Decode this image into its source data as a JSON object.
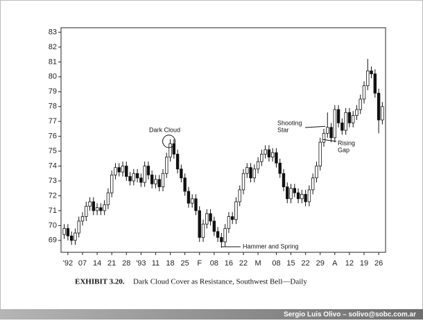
{
  "chart_data": {
    "type": "candlestick",
    "exhibit": "EXHIBIT 3.20.",
    "title": "Dark Cloud Cover as Resistance, Southwest Bell—Daily",
    "footer": "Sergio Luis Olivo – solivo@sobc.com.ar",
    "annotations": {
      "dark_cloud": [
        "Dark Cloud"
      ],
      "shooting_star": [
        "Shooting",
        "Star"
      ],
      "rising_gap": [
        "Rising",
        "Gap"
      ],
      "hammer": [
        "Hammer and Spring"
      ]
    },
    "ylim": [
      68.2,
      83.3
    ],
    "yticks": [
      69,
      70,
      71,
      72,
      73,
      74,
      75,
      76,
      77,
      78,
      79,
      80,
      81,
      82,
      83
    ],
    "xlim": [
      0,
      88
    ],
    "xticks": [
      {
        "value": 1,
        "label": "'92"
      },
      {
        "value": 5,
        "label": "07"
      },
      {
        "value": 9,
        "label": "14"
      },
      {
        "value": 13,
        "label": "21"
      },
      {
        "value": 17,
        "label": "28"
      },
      {
        "value": 21,
        "label": "'93"
      },
      {
        "value": 25,
        "label": "11"
      },
      {
        "value": 29,
        "label": "18"
      },
      {
        "value": 33,
        "label": "25"
      },
      {
        "value": 37,
        "label": "F"
      },
      {
        "value": 41,
        "label": "08"
      },
      {
        "value": 45,
        "label": "16"
      },
      {
        "value": 49,
        "label": "22"
      },
      {
        "value": 53,
        "label": "M"
      },
      {
        "value": 58,
        "label": "08"
      },
      {
        "value": 62,
        "label": "15"
      },
      {
        "value": 66,
        "label": "22"
      },
      {
        "value": 70,
        "label": "29"
      },
      {
        "value": 74,
        "label": "A"
      },
      {
        "value": 78,
        "label": "12"
      },
      {
        "value": 82,
        "label": "19"
      },
      {
        "value": 86,
        "label": "26"
      }
    ],
    "up_color": "#ffffff",
    "down_color": "#111111",
    "series": [
      {
        "open": [
          69.4,
          69.8,
          69.3,
          69.0,
          69.5,
          70.3,
          70.6,
          71.3,
          71.6,
          71.0,
          71.2,
          71.0,
          71.4,
          72.2,
          73.4,
          73.9,
          73.6,
          74.0,
          73.3,
          73.0,
          73.5,
          73.2,
          72.9,
          74.0,
          73.4,
          72.8,
          73.1,
          72.6,
          73.5,
          74.6,
          75.5,
          74.8,
          73.8,
          73.2,
          72.3,
          71.5,
          71.8,
          71.0,
          69.2,
          70.1,
          70.8,
          70.3,
          69.6,
          69.2,
          68.9,
          69.8,
          70.6,
          70.4,
          71.6,
          72.4,
          73.5,
          73.9,
          73.2,
          73.8,
          74.3,
          74.8,
          75.1,
          74.6,
          74.9,
          74.2,
          73.5,
          72.6,
          71.8,
          72.5,
          72.2,
          71.8,
          72.1,
          71.6,
          72.4,
          73.2,
          74.0,
          75.6,
          76.2,
          76.6,
          75.9,
          77.8,
          76.9,
          76.4,
          77.6,
          76.9,
          77.4,
          77.8,
          78.5,
          79.4,
          80.4,
          80.2,
          78.9,
          77.1
        ],
        "high": [
          70.1,
          70.1,
          69.6,
          69.8,
          70.6,
          70.9,
          71.6,
          71.9,
          71.9,
          71.5,
          71.5,
          71.7,
          72.5,
          73.7,
          74.2,
          74.2,
          74.3,
          74.3,
          73.6,
          73.8,
          73.8,
          73.5,
          74.3,
          74.3,
          73.7,
          73.4,
          73.4,
          73.8,
          74.9,
          75.8,
          75.8,
          75.1,
          74.1,
          73.5,
          72.6,
          72.1,
          72.1,
          71.3,
          70.4,
          71.1,
          71.1,
          70.6,
          69.9,
          69.5,
          70.1,
          70.9,
          70.9,
          71.9,
          72.7,
          73.8,
          74.2,
          74.2,
          74.1,
          74.6,
          75.1,
          75.4,
          75.4,
          75.2,
          75.2,
          74.5,
          73.8,
          72.9,
          72.8,
          72.8,
          72.5,
          72.4,
          72.4,
          72.7,
          73.5,
          74.3,
          75.9,
          76.5,
          77.6,
          76.9,
          78.1,
          78.1,
          77.2,
          77.9,
          77.9,
          77.7,
          78.1,
          78.8,
          79.7,
          81.2,
          80.7,
          80.5,
          79.2,
          78.3
        ],
        "low": [
          69.1,
          69.0,
          68.7,
          68.7,
          69.2,
          70.0,
          70.3,
          71.0,
          70.7,
          70.7,
          70.7,
          70.7,
          71.1,
          71.9,
          73.1,
          73.3,
          73.3,
          73.0,
          72.7,
          72.7,
          72.9,
          72.6,
          72.6,
          73.1,
          72.5,
          72.5,
          72.3,
          72.3,
          73.2,
          74.3,
          74.5,
          73.5,
          72.9,
          72.0,
          71.2,
          71.2,
          70.7,
          68.9,
          68.9,
          69.8,
          70.0,
          69.3,
          68.9,
          68.5,
          68.6,
          69.5,
          70.1,
          70.1,
          71.3,
          72.1,
          73.2,
          72.9,
          72.9,
          73.5,
          74.0,
          74.5,
          74.3,
          74.3,
          73.9,
          73.2,
          72.3,
          71.5,
          71.5,
          71.9,
          71.5,
          71.5,
          71.3,
          71.3,
          72.1,
          72.9,
          73.7,
          75.3,
          75.9,
          75.6,
          75.6,
          76.6,
          76.1,
          76.1,
          76.6,
          76.6,
          77.1,
          77.5,
          78.2,
          79.1,
          79.9,
          78.6,
          76.2,
          76.8
        ],
        "close": [
          69.8,
          69.3,
          69.0,
          69.5,
          70.3,
          70.6,
          71.3,
          71.6,
          71.0,
          71.2,
          71.0,
          71.4,
          72.2,
          73.4,
          73.9,
          73.6,
          74.0,
          73.3,
          73.0,
          73.5,
          73.2,
          72.9,
          74.0,
          73.4,
          72.8,
          73.1,
          72.6,
          73.5,
          74.6,
          75.5,
          74.8,
          73.8,
          73.2,
          72.3,
          71.5,
          71.8,
          71.0,
          69.2,
          70.1,
          70.8,
          70.3,
          69.6,
          69.2,
          68.9,
          69.8,
          70.6,
          70.4,
          71.6,
          72.4,
          73.5,
          73.9,
          73.2,
          73.8,
          74.3,
          74.8,
          75.1,
          74.6,
          74.9,
          74.2,
          73.5,
          72.6,
          71.8,
          72.5,
          72.2,
          71.8,
          72.1,
          71.6,
          72.4,
          73.2,
          74.0,
          75.6,
          76.2,
          76.6,
          75.9,
          77.8,
          76.9,
          76.4,
          77.6,
          76.9,
          77.4,
          77.8,
          78.5,
          79.4,
          80.4,
          80.2,
          78.9,
          77.1,
          78.0
        ]
      }
    ]
  }
}
